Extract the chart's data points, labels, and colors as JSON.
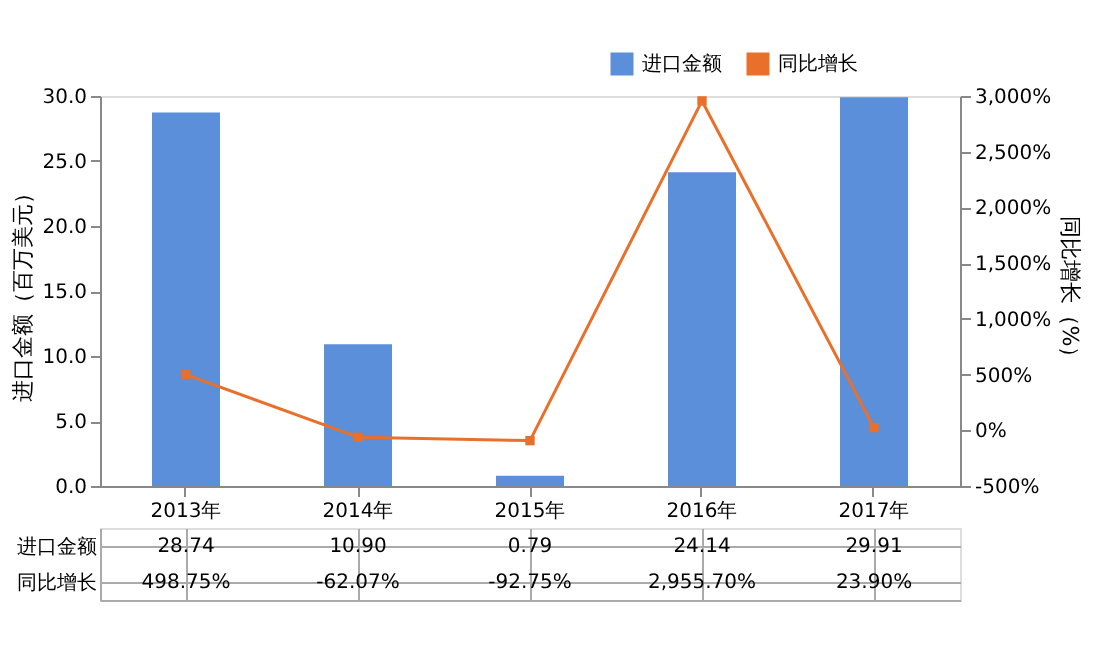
{
  "chart_data": {
    "type": "bar",
    "ylabel": "进口金额（百万美元）",
    "y2label": "同比增长（%）",
    "categories": [
      "2013年",
      "2014年",
      "2015年",
      "2016年",
      "2017年"
    ],
    "series": [
      {
        "name": "进口金额",
        "color": "#5b8fd9",
        "values": [
          28.74,
          10.9,
          0.79,
          24.14,
          29.91
        ],
        "value_labels": [
          "28.74",
          "10.90",
          "0.79",
          "24.14",
          "29.91"
        ]
      },
      {
        "name": "同比增长",
        "type": "line",
        "axis": "y2",
        "color": "#e8702a",
        "marker": "square",
        "values": [
          498.75,
          -62.07,
          -92.75,
          2955.7,
          23.9
        ],
        "value_labels": [
          "498.75%",
          "-62.07%",
          "-92.75%",
          "2,955.70%",
          "23.90%"
        ]
      }
    ],
    "ylim": [
      0,
      30
    ],
    "yticks": [
      {
        "value": 0,
        "label": "0.0"
      },
      {
        "value": 5,
        "label": "5.0"
      },
      {
        "value": 10,
        "label": "10.0"
      },
      {
        "value": 15,
        "label": "15.0"
      },
      {
        "value": 20,
        "label": "20.0"
      },
      {
        "value": 25,
        "label": "25.0"
      },
      {
        "value": 30,
        "label": "30.0"
      }
    ],
    "y2lim": [
      -500,
      3000
    ],
    "y2ticks": [
      {
        "value": -500,
        "label": "-500%"
      },
      {
        "value": 0,
        "label": "0%"
      },
      {
        "value": 500,
        "label": "500%"
      },
      {
        "value": 1000,
        "label": "1,000%"
      },
      {
        "value": 1500,
        "label": "1,500%"
      },
      {
        "value": 2000,
        "label": "2,000%"
      },
      {
        "value": 2500,
        "label": "2,500%"
      },
      {
        "value": 3000,
        "label": "3,000%"
      }
    ],
    "legend": "top right",
    "grid": false
  }
}
